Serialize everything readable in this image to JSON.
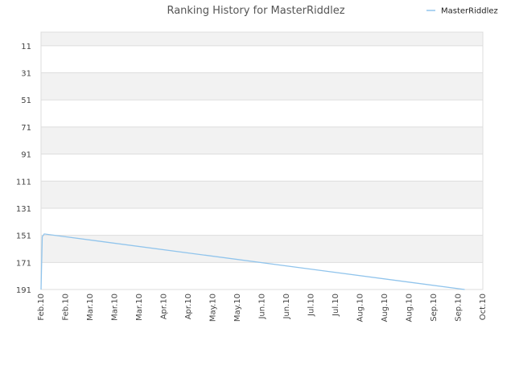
{
  "chart_data": {
    "type": "line",
    "title": "Ranking History for MasterRiddlez",
    "xlabel": "",
    "ylabel": "",
    "y_inverted": true,
    "ylim": [
      1,
      191
    ],
    "grid": true,
    "legend": "top-right",
    "y_ticks": [
      11,
      31,
      51,
      71,
      91,
      111,
      131,
      151,
      171,
      191
    ],
    "x_tick_labels": [
      "Feb.10",
      "Feb.10",
      "Mar.10",
      "Mar.10",
      "Mar.10",
      "Apr.10",
      "Apr.10",
      "May.10",
      "May.10",
      "Jun.10",
      "Jun.10",
      "Jul.10",
      "Jul.10",
      "Aug.10",
      "Aug.10",
      "Aug.10",
      "Sep.10",
      "Sep.10",
      "Oct.10"
    ],
    "series": [
      {
        "name": "MasterRiddlez",
        "color": "#90c4ec",
        "points": [
          {
            "x": "Feb.10",
            "y": 191
          },
          {
            "x": "Feb.10",
            "y": 152
          },
          {
            "x": "Feb.10",
            "y": 150
          },
          {
            "x": "Sep.10",
            "y": 191
          }
        ]
      }
    ]
  }
}
